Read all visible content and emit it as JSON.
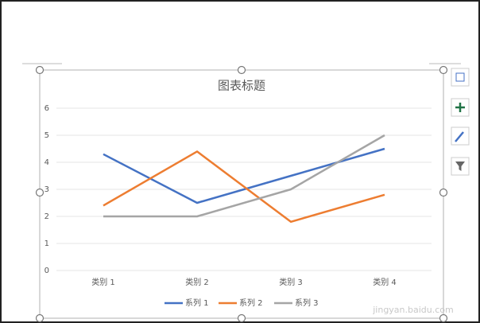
{
  "chart_data": {
    "type": "line",
    "title": "图表标题",
    "categories": [
      "类别 1",
      "类别 2",
      "类别 3",
      "类别 4"
    ],
    "series": [
      {
        "name": "系列 1",
        "color": "#4472c4",
        "values": [
          4.3,
          2.5,
          3.5,
          4.5
        ]
      },
      {
        "name": "系列 2",
        "color": "#ed7d31",
        "values": [
          2.4,
          4.4,
          1.8,
          2.8
        ]
      },
      {
        "name": "系列 3",
        "color": "#a5a5a5",
        "values": [
          2,
          2,
          3,
          5
        ]
      }
    ],
    "ylim": [
      0,
      6
    ],
    "yticks": [
      0,
      1,
      2,
      3,
      4,
      5,
      6
    ],
    "grid": true,
    "legend": "bottom",
    "watermark": "jingyan.baidu.com"
  }
}
